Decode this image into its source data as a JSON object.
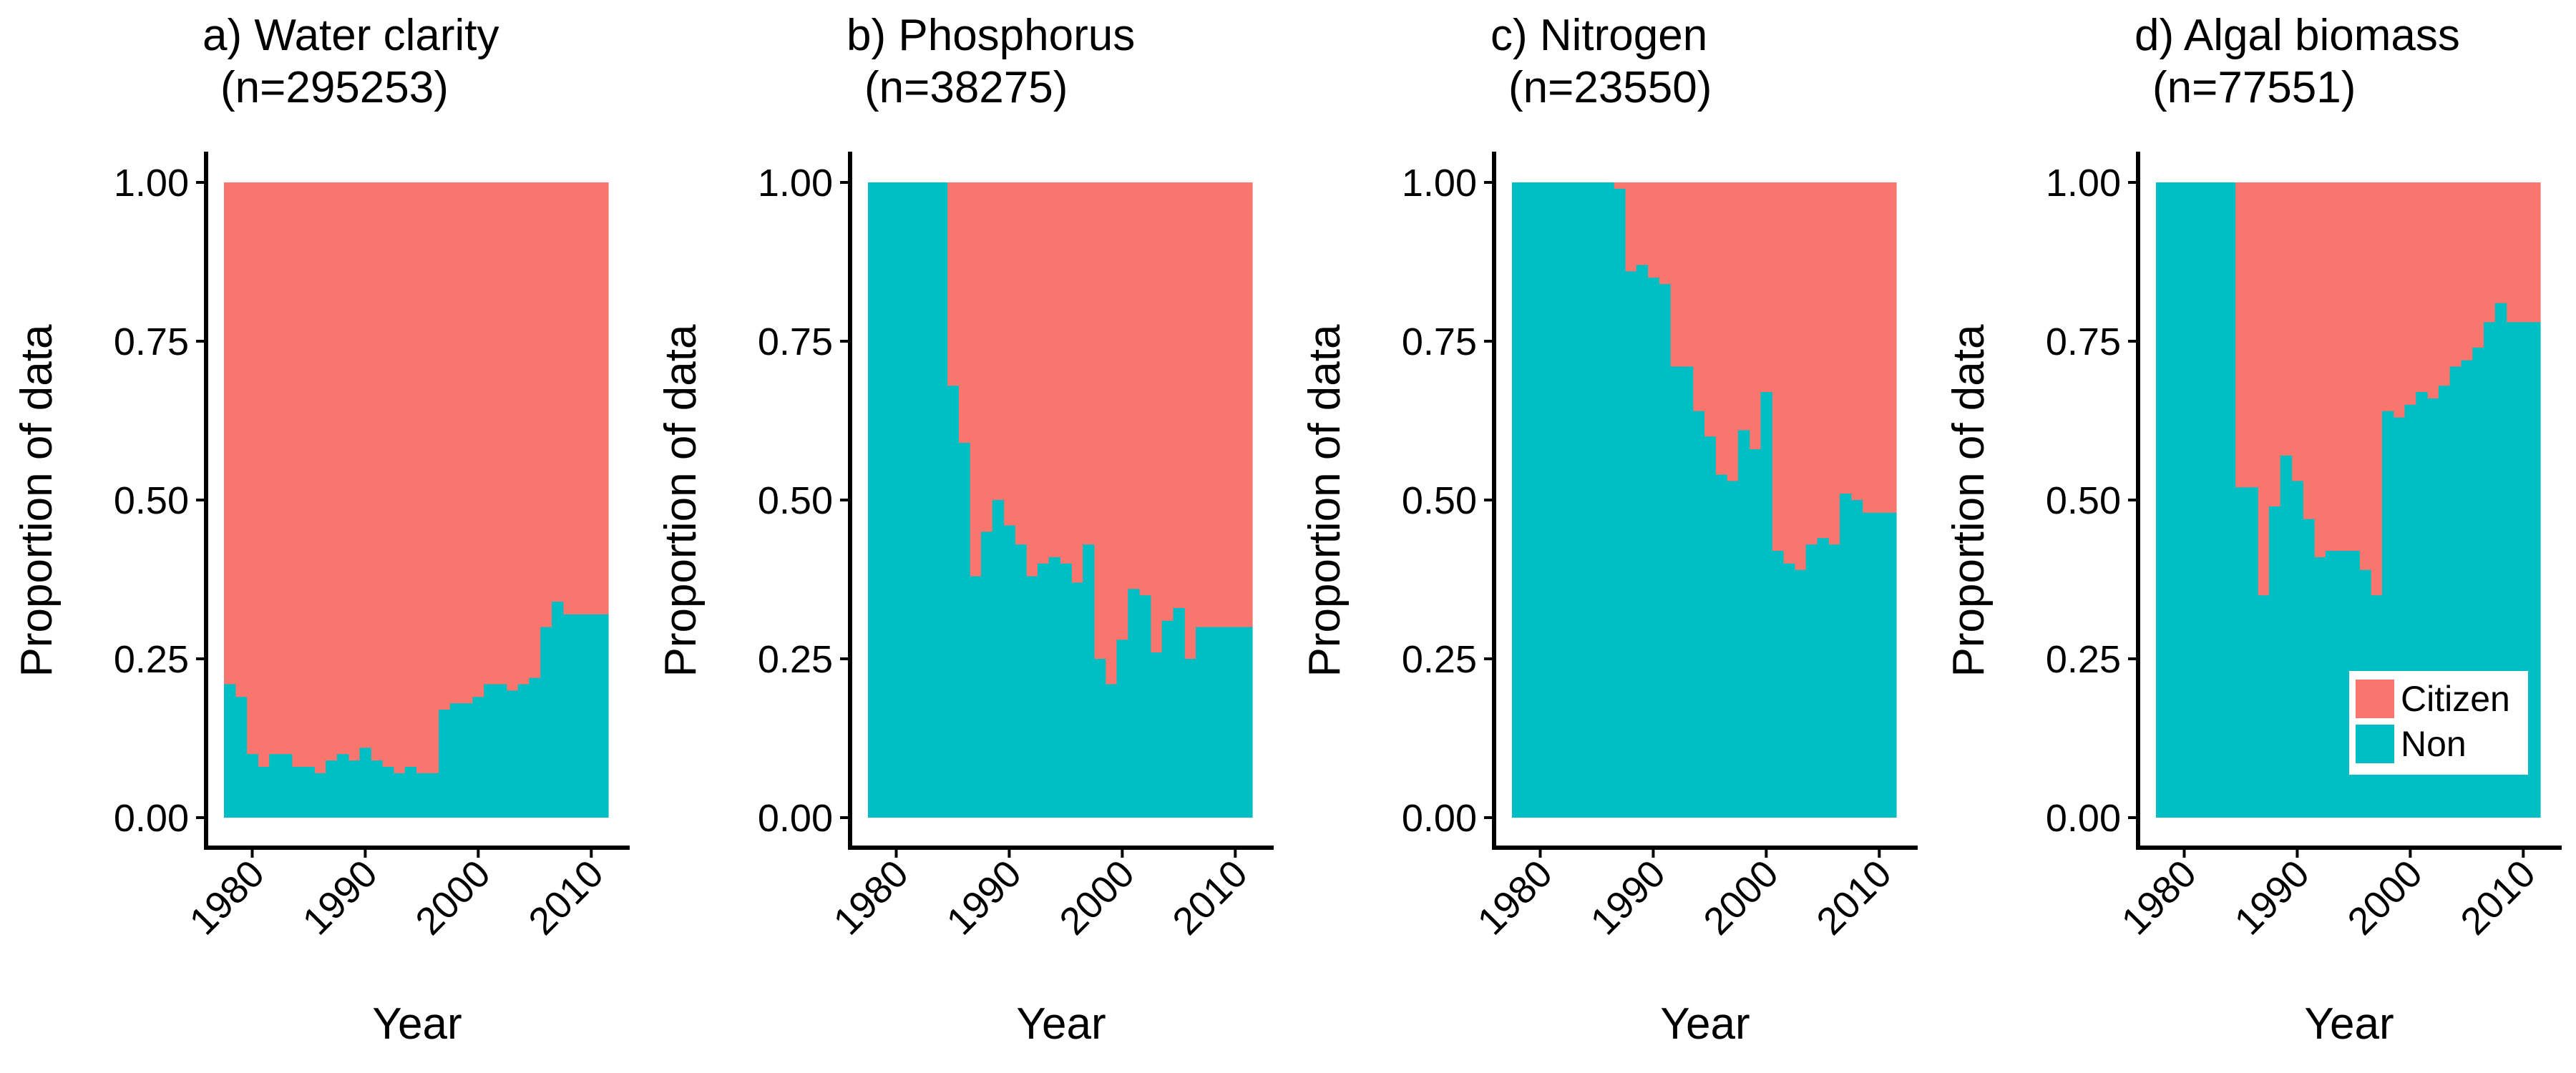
{
  "colors": {
    "citizen": "#F8766D",
    "non": "#00BFC4"
  },
  "legend": {
    "position": "bottom-right of panel d",
    "entries": [
      "Citizen",
      "Non"
    ]
  },
  "chart_data": [
    {
      "type": "area",
      "stacked": "proportion",
      "title": "a) Water clarity",
      "subtitle": "(n=295253)",
      "xlabel": "Year",
      "ylabel": "Proportion of data",
      "xlim": [
        1977.5,
        2011.5
      ],
      "ylim": [
        0,
        1
      ],
      "xticks": [
        "1980",
        "1990",
        "2000",
        "2010"
      ],
      "yticks": [
        "0.00",
        "0.25",
        "0.50",
        "0.75",
        "1.00"
      ],
      "grid": false,
      "years": [
        1978,
        1979,
        1980,
        1981,
        1982,
        1983,
        1984,
        1985,
        1986,
        1987,
        1988,
        1989,
        1990,
        1991,
        1992,
        1993,
        1994,
        1995,
        1996,
        1997,
        1998,
        1999,
        2000,
        2001,
        2002,
        2003,
        2004,
        2005,
        2006,
        2007,
        2008,
        2009,
        2010,
        2011
      ],
      "series": [
        {
          "name": "Non",
          "values": [
            0.21,
            0.19,
            0.1,
            0.08,
            0.1,
            0.1,
            0.08,
            0.08,
            0.07,
            0.09,
            0.1,
            0.09,
            0.11,
            0.09,
            0.08,
            0.07,
            0.08,
            0.07,
            0.07,
            0.17,
            0.18,
            0.18,
            0.19,
            0.21,
            0.21,
            0.2,
            0.21,
            0.22,
            0.3,
            0.34,
            0.32,
            0.32,
            0.32,
            0.32
          ]
        },
        {
          "name": "Citizen",
          "values": [
            0.79,
            0.81,
            0.9,
            0.92,
            0.9,
            0.9,
            0.92,
            0.92,
            0.93,
            0.91,
            0.9,
            0.91,
            0.89,
            0.91,
            0.92,
            0.93,
            0.92,
            0.93,
            0.93,
            0.83,
            0.82,
            0.82,
            0.81,
            0.79,
            0.79,
            0.8,
            0.79,
            0.78,
            0.7,
            0.66,
            0.68,
            0.68,
            0.68,
            0.68
          ]
        }
      ]
    },
    {
      "type": "area",
      "stacked": "proportion",
      "title": "b) Phosphorus",
      "subtitle": "(n=38275)",
      "xlabel": "Year",
      "ylabel": "Proportion of data",
      "xlim": [
        1977.5,
        2011.5
      ],
      "ylim": [
        0,
        1
      ],
      "xticks": [
        "1980",
        "1990",
        "2000",
        "2010"
      ],
      "yticks": [
        "0.00",
        "0.25",
        "0.50",
        "0.75",
        "1.00"
      ],
      "grid": false,
      "years": [
        1978,
        1979,
        1980,
        1981,
        1982,
        1983,
        1984,
        1985,
        1986,
        1987,
        1988,
        1989,
        1990,
        1991,
        1992,
        1993,
        1994,
        1995,
        1996,
        1997,
        1998,
        1999,
        2000,
        2001,
        2002,
        2003,
        2004,
        2005,
        2006,
        2007,
        2008,
        2009,
        2010,
        2011
      ],
      "series": [
        {
          "name": "Non",
          "values": [
            1.0,
            1.0,
            1.0,
            1.0,
            1.0,
            1.0,
            1.0,
            0.68,
            0.59,
            0.38,
            0.45,
            0.5,
            0.46,
            0.43,
            0.38,
            0.4,
            0.41,
            0.4,
            0.37,
            0.43,
            0.25,
            0.21,
            0.28,
            0.36,
            0.35,
            0.26,
            0.31,
            0.33,
            0.25,
            0.3,
            0.3,
            0.3,
            0.3,
            0.3
          ]
        },
        {
          "name": "Citizen",
          "values": [
            0.0,
            0.0,
            0.0,
            0.0,
            0.0,
            0.0,
            0.0,
            0.32,
            0.41,
            0.62,
            0.55,
            0.5,
            0.54,
            0.57,
            0.62,
            0.6,
            0.59,
            0.6,
            0.63,
            0.57,
            0.75,
            0.79,
            0.72,
            0.64,
            0.65,
            0.74,
            0.69,
            0.67,
            0.75,
            0.7,
            0.7,
            0.7,
            0.7,
            0.7
          ]
        }
      ]
    },
    {
      "type": "area",
      "stacked": "proportion",
      "title": "c) Nitrogen",
      "subtitle": "(n=23550)",
      "xlabel": "Year",
      "ylabel": "Proportion of data",
      "xlim": [
        1977.5,
        2011.5
      ],
      "ylim": [
        0,
        1
      ],
      "xticks": [
        "1980",
        "1990",
        "2000",
        "2010"
      ],
      "yticks": [
        "0.00",
        "0.25",
        "0.50",
        "0.75",
        "1.00"
      ],
      "grid": false,
      "years": [
        1978,
        1979,
        1980,
        1981,
        1982,
        1983,
        1984,
        1985,
        1986,
        1987,
        1988,
        1989,
        1990,
        1991,
        1992,
        1993,
        1994,
        1995,
        1996,
        1997,
        1998,
        1999,
        2000,
        2001,
        2002,
        2003,
        2004,
        2005,
        2006,
        2007,
        2008,
        2009,
        2010,
        2011
      ],
      "series": [
        {
          "name": "Non",
          "values": [
            1.0,
            1.0,
            1.0,
            1.0,
            1.0,
            1.0,
            1.0,
            1.0,
            1.0,
            0.99,
            0.86,
            0.87,
            0.85,
            0.84,
            0.71,
            0.71,
            0.64,
            0.6,
            0.54,
            0.53,
            0.61,
            0.58,
            0.67,
            0.42,
            0.4,
            0.39,
            0.43,
            0.44,
            0.43,
            0.51,
            0.5,
            0.48,
            0.48,
            0.48
          ]
        },
        {
          "name": "Citizen",
          "values": [
            0.0,
            0.0,
            0.0,
            0.0,
            0.0,
            0.0,
            0.0,
            0.0,
            0.0,
            0.01,
            0.14,
            0.13,
            0.15,
            0.16,
            0.29,
            0.29,
            0.36,
            0.4,
            0.46,
            0.47,
            0.39,
            0.42,
            0.33,
            0.58,
            0.6,
            0.61,
            0.57,
            0.56,
            0.57,
            0.49,
            0.5,
            0.52,
            0.52,
            0.52
          ]
        }
      ]
    },
    {
      "type": "area",
      "stacked": "proportion",
      "title": "d) Algal biomass",
      "subtitle": "(n=77551)",
      "xlabel": "Year",
      "ylabel": "Proportion of data",
      "xlim": [
        1977.5,
        2011.5
      ],
      "ylim": [
        0,
        1
      ],
      "xticks": [
        "1980",
        "1990",
        "2000",
        "2010"
      ],
      "yticks": [
        "0.00",
        "0.25",
        "0.50",
        "0.75",
        "1.00"
      ],
      "grid": false,
      "years": [
        1978,
        1979,
        1980,
        1981,
        1982,
        1983,
        1984,
        1985,
        1986,
        1987,
        1988,
        1989,
        1990,
        1991,
        1992,
        1993,
        1994,
        1995,
        1996,
        1997,
        1998,
        1999,
        2000,
        2001,
        2002,
        2003,
        2004,
        2005,
        2006,
        2007,
        2008,
        2009,
        2010,
        2011
      ],
      "series": [
        {
          "name": "Non",
          "values": [
            1.0,
            1.0,
            1.0,
            1.0,
            1.0,
            1.0,
            1.0,
            0.52,
            0.52,
            0.35,
            0.49,
            0.57,
            0.53,
            0.47,
            0.41,
            0.42,
            0.42,
            0.42,
            0.39,
            0.35,
            0.64,
            0.63,
            0.65,
            0.67,
            0.66,
            0.68,
            0.71,
            0.72,
            0.74,
            0.78,
            0.81,
            0.78,
            0.78,
            0.78
          ]
        },
        {
          "name": "Citizen",
          "values": [
            0.0,
            0.0,
            0.0,
            0.0,
            0.0,
            0.0,
            0.0,
            0.48,
            0.48,
            0.65,
            0.51,
            0.43,
            0.47,
            0.53,
            0.59,
            0.58,
            0.58,
            0.58,
            0.61,
            0.65,
            0.36,
            0.37,
            0.35,
            0.33,
            0.34,
            0.32,
            0.29,
            0.28,
            0.26,
            0.22,
            0.19,
            0.22,
            0.22,
            0.22
          ]
        }
      ]
    }
  ]
}
